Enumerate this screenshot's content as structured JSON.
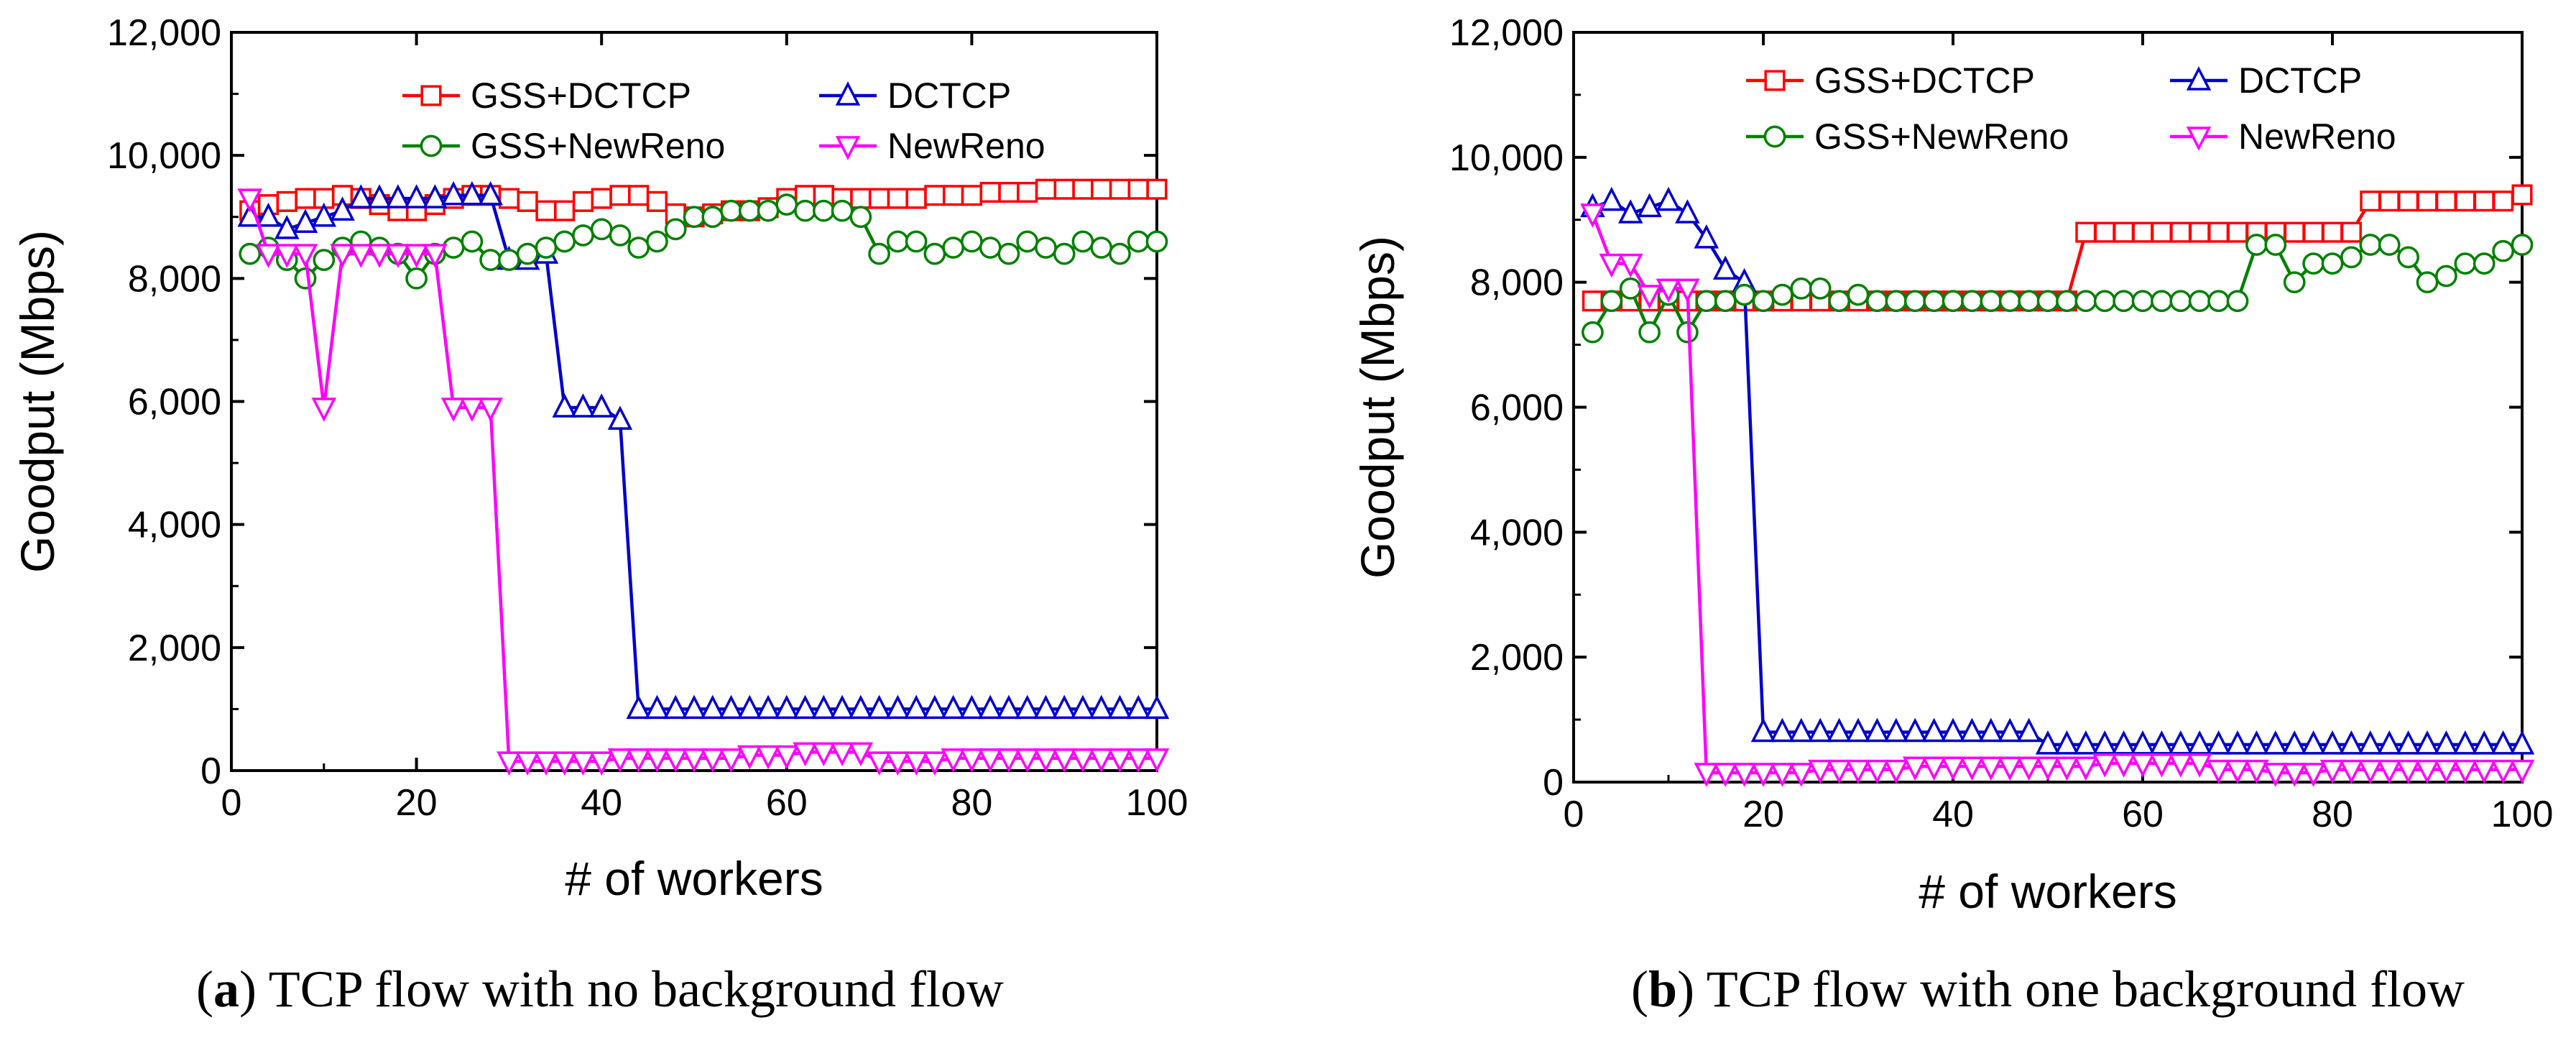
{
  "chart_data": [
    {
      "type": "line",
      "panel": "a",
      "caption_letter": "a",
      "caption_open": "(",
      "caption_rest": ") TCP flow with no background flow",
      "xlabel": "# of workers",
      "ylabel": "Goodput (Mbps)",
      "xlim": [
        0,
        100
      ],
      "ylim": [
        0,
        12000
      ],
      "xticks": [
        0,
        20,
        40,
        60,
        80,
        100
      ],
      "yticks": [
        0,
        2000,
        4000,
        6000,
        8000,
        10000,
        12000
      ],
      "xtick_labels": [
        "0",
        "20",
        "40",
        "60",
        "80",
        "100"
      ],
      "ytick_labels": [
        "0",
        "2,000",
        "4,000",
        "6,000",
        "8,000",
        "10,000",
        "12,000"
      ],
      "legend": [
        "GSS+DCTCP",
        "DCTCP",
        "GSS+NewReno",
        "NewReno"
      ],
      "series": [
        {
          "name": "GSS+DCTCP",
          "color": "#ff0000",
          "marker": "square",
          "x": [
            2,
            4,
            6,
            8,
            10,
            12,
            14,
            16,
            18,
            20,
            22,
            24,
            26,
            28,
            30,
            32,
            34,
            36,
            38,
            40,
            42,
            44,
            46,
            48,
            50,
            52,
            54,
            56,
            58,
            60,
            62,
            64,
            66,
            68,
            70,
            72,
            74,
            76,
            78,
            80,
            82,
            84,
            86,
            88,
            90,
            92,
            94,
            96,
            98,
            100
          ],
          "values": [
            9100,
            9200,
            9250,
            9300,
            9300,
            9350,
            9300,
            9200,
            9100,
            9100,
            9200,
            9300,
            9350,
            9350,
            9300,
            9250,
            9100,
            9100,
            9250,
            9300,
            9350,
            9350,
            9250,
            9050,
            9000,
            9050,
            9100,
            9100,
            9150,
            9300,
            9350,
            9350,
            9300,
            9300,
            9300,
            9300,
            9300,
            9350,
            9350,
            9350,
            9400,
            9400,
            9400,
            9450,
            9450,
            9450,
            9450,
            9450,
            9450,
            9450
          ]
        },
        {
          "name": "DCTCP",
          "color": "#0000cc",
          "marker": "triangle-up",
          "x": [
            2,
            4,
            6,
            8,
            10,
            12,
            14,
            16,
            18,
            20,
            22,
            24,
            26,
            28,
            30,
            32,
            34,
            36,
            38,
            40,
            42,
            44,
            46,
            48,
            50,
            52,
            54,
            56,
            58,
            60,
            62,
            64,
            66,
            68,
            70,
            72,
            74,
            76,
            78,
            80,
            82,
            84,
            86,
            88,
            90,
            92,
            94,
            96,
            98,
            100
          ],
          "values": [
            9000,
            9000,
            8800,
            8900,
            9000,
            9100,
            9300,
            9300,
            9300,
            9300,
            9300,
            9350,
            9350,
            9350,
            8300,
            8300,
            8400,
            5900,
            5900,
            5900,
            5700,
            1000,
            1000,
            1000,
            1000,
            1000,
            1000,
            1000,
            1000,
            1000,
            1000,
            1000,
            1000,
            1000,
            1000,
            1000,
            1000,
            1000,
            1000,
            1000,
            1000,
            1000,
            1000,
            1000,
            1000,
            1000,
            1000,
            1000,
            1000,
            1000
          ]
        },
        {
          "name": "GSS+NewReno",
          "color": "#008000",
          "marker": "circle",
          "x": [
            2,
            4,
            6,
            8,
            10,
            12,
            14,
            16,
            18,
            20,
            22,
            24,
            26,
            28,
            30,
            32,
            34,
            36,
            38,
            40,
            42,
            44,
            46,
            48,
            50,
            52,
            54,
            56,
            58,
            60,
            62,
            64,
            66,
            68,
            70,
            72,
            74,
            76,
            78,
            80,
            82,
            84,
            86,
            88,
            90,
            92,
            94,
            96,
            98,
            100
          ],
          "values": [
            8400,
            8500,
            8300,
            8000,
            8300,
            8500,
            8600,
            8500,
            8400,
            8000,
            8400,
            8500,
            8600,
            8300,
            8300,
            8400,
            8500,
            8600,
            8700,
            8800,
            8700,
            8500,
            8600,
            8800,
            9000,
            9000,
            9100,
            9100,
            9100,
            9200,
            9100,
            9100,
            9100,
            9000,
            8400,
            8600,
            8600,
            8400,
            8500,
            8600,
            8500,
            8400,
            8600,
            8500,
            8400,
            8600,
            8500,
            8400,
            8600,
            8600
          ]
        },
        {
          "name": "NewReno",
          "color": "#ff00ff",
          "marker": "triangle-down",
          "x": [
            2,
            4,
            6,
            8,
            10,
            12,
            14,
            16,
            18,
            20,
            22,
            24,
            26,
            28,
            30,
            32,
            34,
            36,
            38,
            40,
            42,
            44,
            46,
            48,
            50,
            52,
            54,
            56,
            58,
            60,
            62,
            64,
            66,
            68,
            70,
            72,
            74,
            76,
            78,
            80,
            82,
            84,
            86,
            88,
            90,
            92,
            94,
            96,
            98,
            100
          ],
          "values": [
            9300,
            8400,
            8400,
            8400,
            5900,
            8400,
            8400,
            8400,
            8400,
            8400,
            8400,
            5900,
            5900,
            5900,
            150,
            150,
            150,
            150,
            150,
            150,
            200,
            200,
            200,
            200,
            200,
            200,
            200,
            250,
            250,
            250,
            300,
            300,
            300,
            300,
            150,
            150,
            150,
            150,
            200,
            200,
            200,
            200,
            200,
            200,
            200,
            200,
            200,
            200,
            200,
            200
          ]
        }
      ]
    },
    {
      "type": "line",
      "panel": "b",
      "caption_letter": "b",
      "caption_open": "(",
      "caption_rest": ") TCP flow with one background flow",
      "xlabel": "# of workers",
      "ylabel": "Goodput (Mbps)",
      "xlim": [
        0,
        100
      ],
      "ylim": [
        0,
        12000
      ],
      "xticks": [
        0,
        20,
        40,
        60,
        80,
        100
      ],
      "yticks": [
        0,
        2000,
        4000,
        6000,
        8000,
        10000,
        12000
      ],
      "xtick_labels": [
        "0",
        "20",
        "40",
        "60",
        "80",
        "100"
      ],
      "ytick_labels": [
        "0",
        "2,000",
        "4,000",
        "6,000",
        "8,000",
        "10,000",
        "12,000"
      ],
      "legend": [
        "GSS+DCTCP",
        "DCTCP",
        "GSS+NewReno",
        "NewReno"
      ],
      "series": [
        {
          "name": "GSS+DCTCP",
          "color": "#ff0000",
          "marker": "square",
          "x": [
            2,
            4,
            6,
            8,
            10,
            12,
            14,
            16,
            18,
            20,
            22,
            24,
            26,
            28,
            30,
            32,
            34,
            36,
            38,
            40,
            42,
            44,
            46,
            48,
            50,
            52,
            54,
            56,
            58,
            60,
            62,
            64,
            66,
            68,
            70,
            72,
            74,
            76,
            78,
            80,
            82,
            84,
            86,
            88,
            90,
            92,
            94,
            96,
            98,
            100
          ],
          "values": [
            7700,
            7700,
            7700,
            7700,
            7700,
            7700,
            7700,
            7700,
            7700,
            7700,
            7700,
            7700,
            7700,
            7700,
            7700,
            7700,
            7700,
            7700,
            7700,
            7700,
            7700,
            7700,
            7700,
            7700,
            7700,
            7700,
            8800,
            8800,
            8800,
            8800,
            8800,
            8800,
            8800,
            8800,
            8800,
            8800,
            8800,
            8800,
            8800,
            8800,
            8800,
            9300,
            9300,
            9300,
            9300,
            9300,
            9300,
            9300,
            9300,
            9400
          ]
        },
        {
          "name": "DCTCP",
          "color": "#0000cc",
          "marker": "triangle-up",
          "x": [
            2,
            4,
            6,
            8,
            10,
            12,
            14,
            16,
            18,
            20,
            22,
            24,
            26,
            28,
            30,
            32,
            34,
            36,
            38,
            40,
            42,
            44,
            46,
            48,
            50,
            52,
            54,
            56,
            58,
            60,
            62,
            64,
            66,
            68,
            70,
            72,
            74,
            76,
            78,
            80,
            82,
            84,
            86,
            88,
            90,
            92,
            94,
            96,
            98,
            100
          ],
          "values": [
            9200,
            9300,
            9100,
            9200,
            9300,
            9100,
            8700,
            8200,
            8000,
            800,
            800,
            800,
            800,
            800,
            800,
            800,
            800,
            800,
            800,
            800,
            800,
            800,
            800,
            800,
            600,
            600,
            600,
            600,
            600,
            600,
            600,
            600,
            600,
            600,
            600,
            600,
            600,
            600,
            600,
            600,
            600,
            600,
            600,
            600,
            600,
            600,
            600,
            600,
            600,
            600
          ]
        },
        {
          "name": "GSS+NewReno",
          "color": "#008000",
          "marker": "circle",
          "x": [
            2,
            4,
            6,
            8,
            10,
            12,
            14,
            16,
            18,
            20,
            22,
            24,
            26,
            28,
            30,
            32,
            34,
            36,
            38,
            40,
            42,
            44,
            46,
            48,
            50,
            52,
            54,
            56,
            58,
            60,
            62,
            64,
            66,
            68,
            70,
            72,
            74,
            76,
            78,
            80,
            82,
            84,
            86,
            88,
            90,
            92,
            94,
            96,
            98,
            100
          ],
          "values": [
            7200,
            7700,
            7900,
            7200,
            7800,
            7200,
            7700,
            7700,
            7800,
            7700,
            7800,
            7900,
            7900,
            7700,
            7800,
            7700,
            7700,
            7700,
            7700,
            7700,
            7700,
            7700,
            7700,
            7700,
            7700,
            7700,
            7700,
            7700,
            7700,
            7700,
            7700,
            7700,
            7700,
            7700,
            7700,
            8600,
            8600,
            8000,
            8300,
            8300,
            8400,
            8600,
            8600,
            8400,
            8000,
            8100,
            8300,
            8300,
            8500,
            8600
          ]
        },
        {
          "name": "NewReno",
          "color": "#ff00ff",
          "marker": "triangle-down",
          "x": [
            2,
            4,
            6,
            8,
            10,
            12,
            14,
            16,
            18,
            20,
            22,
            24,
            26,
            28,
            30,
            32,
            34,
            36,
            38,
            40,
            42,
            44,
            46,
            48,
            50,
            52,
            54,
            56,
            58,
            60,
            62,
            64,
            66,
            68,
            70,
            72,
            74,
            76,
            78,
            80,
            82,
            84,
            86,
            88,
            90,
            92,
            94,
            96,
            98,
            100
          ],
          "values": [
            9100,
            8300,
            8300,
            7800,
            7900,
            7900,
            150,
            150,
            150,
            150,
            150,
            150,
            200,
            200,
            200,
            200,
            200,
            250,
            250,
            250,
            250,
            250,
            250,
            250,
            250,
            250,
            250,
            300,
            300,
            300,
            300,
            300,
            300,
            200,
            200,
            200,
            150,
            150,
            150,
            200,
            200,
            200,
            200,
            200,
            200,
            200,
            200,
            200,
            200,
            200
          ]
        }
      ]
    }
  ]
}
